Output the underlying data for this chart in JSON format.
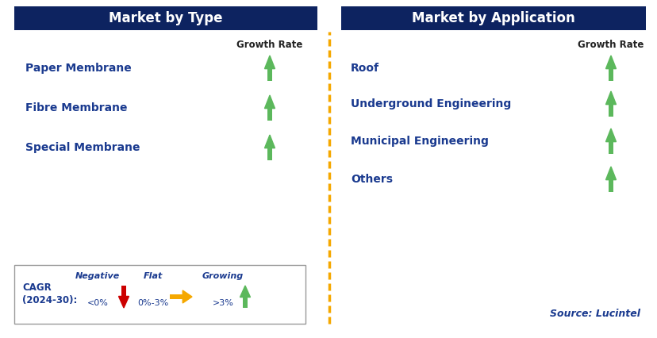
{
  "title_left": "Market by Type",
  "title_right": "Market by Application",
  "header_bg_color": "#0d2360",
  "header_text_color": "#ffffff",
  "left_items": [
    "Paper Membrane",
    "Fibre Membrane",
    "Special Membrane"
  ],
  "right_items": [
    "Roof",
    "Underground Engineering",
    "Municipal Engineering",
    "Others"
  ],
  "item_color": "#1a3a8f",
  "arrow_up_color": "#5cb85c",
  "arrow_down_color": "#cc0000",
  "arrow_flat_color": "#f5a800",
  "growth_rate_label": "Growth Rate",
  "dashed_line_color": "#f5a800",
  "legend_label_line1": "CAGR",
  "legend_label_line2": "(2024-30):",
  "legend_negative": "Negative",
  "legend_negative_value": "<0%",
  "legend_flat": "Flat",
  "legend_flat_value": "0%-3%",
  "legend_growing": "Growing",
  "legend_growing_value": ">3%",
  "source_text": "Source: Lucintel",
  "bg_color": "#ffffff",
  "fig_width": 8.29,
  "fig_height": 4.26,
  "dpi": 100
}
